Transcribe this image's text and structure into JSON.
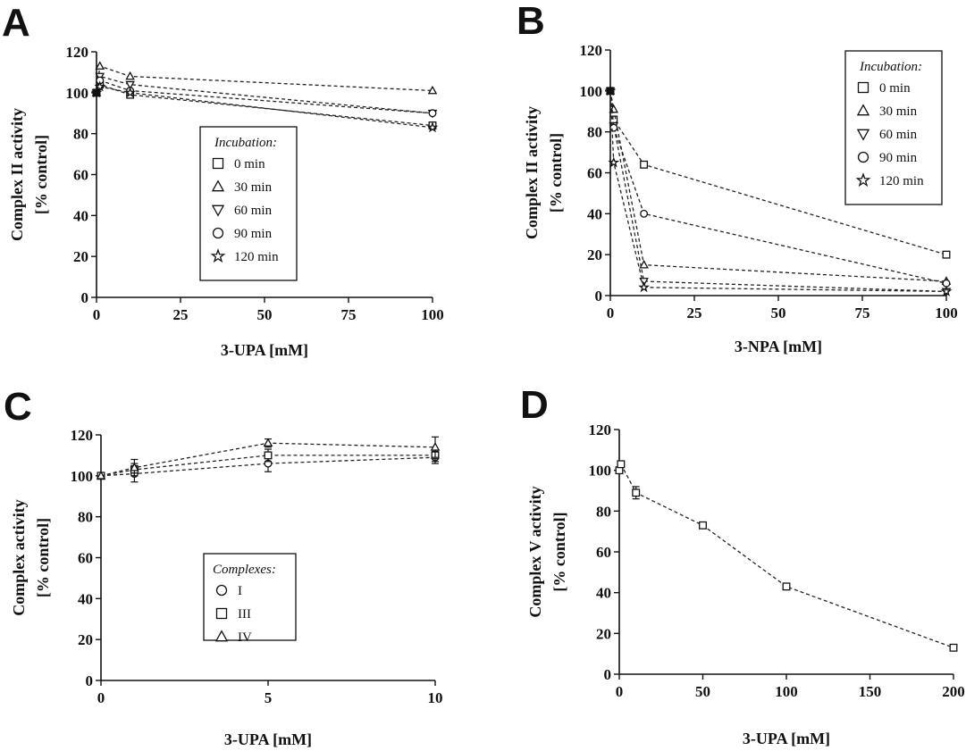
{
  "panels": [
    {
      "letter": "A",
      "xlabel": "3-UPA [mM]",
      "ylabel_lines": [
        "Complex II activity",
        "[% control]"
      ]
    },
    {
      "letter": "B",
      "xlabel": "3-NPA [mM]",
      "ylabel_lines": [
        "Complex II activity",
        "[% control]"
      ]
    },
    {
      "letter": "C",
      "xlabel": "3-UPA [mM]",
      "ylabel_lines": [
        "Complex activity",
        "[% control]"
      ]
    },
    {
      "letter": "D",
      "xlabel": "3-UPA [mM]",
      "ylabel_lines": [
        "Complex V activity",
        "[% control]"
      ]
    }
  ],
  "chart_data": [
    {
      "type": "line",
      "panel": "A",
      "xlabel": "3-UPA [mM]",
      "ylabel": "Complex II activity [% control]",
      "xlim": [
        0,
        100
      ],
      "ylim": [
        0,
        120
      ],
      "xticks": [
        0,
        25,
        50,
        75,
        100
      ],
      "yticks": [
        0,
        20,
        40,
        60,
        80,
        100,
        120
      ],
      "legend_title": "Incubation:",
      "legend_position": "center",
      "x": [
        0,
        1,
        10,
        100
      ],
      "series": [
        {
          "name": "0 min",
          "marker": "square",
          "values": [
            100,
            104,
            99,
            84
          ]
        },
        {
          "name": "30 min",
          "marker": "triangle-up",
          "values": [
            100,
            113,
            108,
            101
          ]
        },
        {
          "name": "60 min",
          "marker": "triangle-down",
          "values": [
            100,
            108,
            104,
            90
          ]
        },
        {
          "name": "90 min",
          "marker": "circle",
          "values": [
            100,
            106,
            101,
            90
          ]
        },
        {
          "name": "120 min",
          "marker": "star",
          "values": [
            100,
            103,
            100,
            83
          ]
        }
      ]
    },
    {
      "type": "line",
      "panel": "B",
      "xlabel": "3-NPA [mM]",
      "ylabel": "Complex II activity [% control]",
      "xlim": [
        0,
        100
      ],
      "ylim": [
        0,
        120
      ],
      "xticks": [
        0,
        25,
        50,
        75,
        100
      ],
      "yticks": [
        0,
        20,
        40,
        60,
        80,
        100,
        120
      ],
      "legend_title": "Incubation:",
      "legend_position": "top-right",
      "x": [
        0,
        1,
        10,
        100
      ],
      "series": [
        {
          "name": "0 min",
          "marker": "square",
          "values": [
            100,
            86,
            64,
            20
          ]
        },
        {
          "name": "30 min",
          "marker": "triangle-up",
          "values": [
            100,
            91,
            15,
            7
          ]
        },
        {
          "name": "60 min",
          "marker": "triangle-down",
          "values": [
            100,
            83,
            7,
            2
          ]
        },
        {
          "name": "90 min",
          "marker": "circle",
          "values": [
            100,
            82,
            40,
            6
          ]
        },
        {
          "name": "120 min",
          "marker": "star",
          "values": [
            100,
            65,
            4,
            2
          ]
        }
      ]
    },
    {
      "type": "line",
      "panel": "C",
      "xlabel": "3-UPA [mM]",
      "ylabel": "Complex activity [% control]",
      "xlim": [
        0,
        10
      ],
      "ylim": [
        0,
        120
      ],
      "xticks": [
        0,
        5,
        10
      ],
      "yticks": [
        0,
        20,
        40,
        60,
        80,
        100,
        120
      ],
      "legend_title": "Complexes:",
      "legend_position": "center",
      "x": [
        0,
        1,
        5,
        10
      ],
      "series": [
        {
          "name": "I",
          "marker": "circle",
          "values": [
            100,
            101,
            106,
            109
          ],
          "errors": [
            0,
            4,
            4,
            3
          ]
        },
        {
          "name": "III",
          "marker": "square",
          "values": [
            100,
            103,
            110,
            110
          ],
          "errors": [
            0,
            3,
            3,
            3
          ]
        },
        {
          "name": "IV",
          "marker": "triangle-up",
          "values": [
            100,
            104,
            116,
            114
          ],
          "errors": [
            0,
            4,
            2,
            5
          ]
        }
      ]
    },
    {
      "type": "line",
      "panel": "D",
      "xlabel": "3-UPA [mM]",
      "ylabel": "Complex V activity [% control]",
      "xlim": [
        0,
        200
      ],
      "ylim": [
        0,
        120
      ],
      "xticks": [
        0,
        50,
        100,
        150,
        200
      ],
      "yticks": [
        0,
        20,
        40,
        60,
        80,
        100,
        120
      ],
      "x": [
        0,
        1,
        10,
        50,
        100,
        200
      ],
      "series": [
        {
          "marker": "square",
          "values": [
            100,
            103,
            89,
            73,
            43,
            13
          ],
          "errors": [
            1,
            1,
            3,
            1,
            1,
            1
          ]
        }
      ]
    }
  ]
}
